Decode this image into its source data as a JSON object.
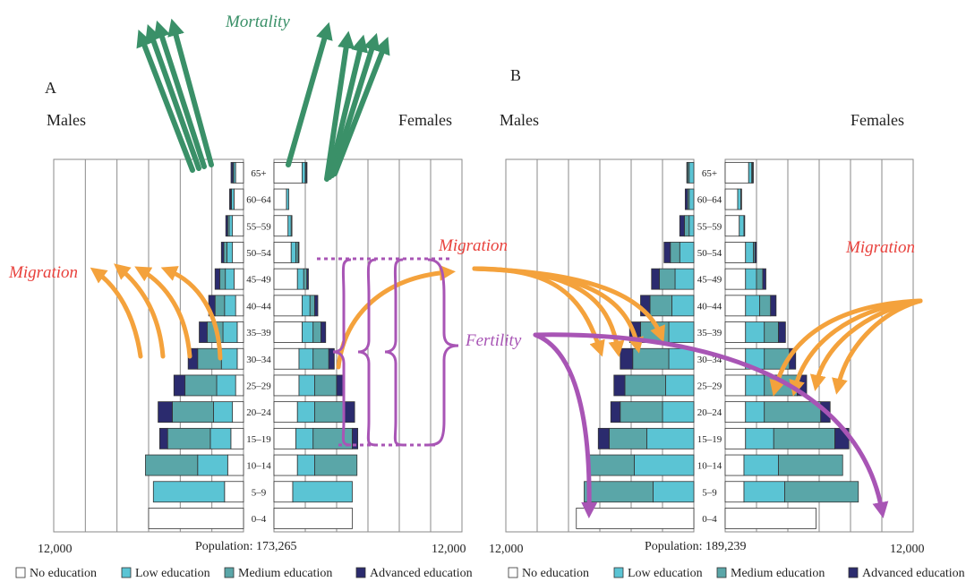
{
  "colors": {
    "no_education": "#ffffff",
    "low_education": "#5bc4d4",
    "medium_education": "#5aa6a8",
    "advanced_education": "#2b2b6e",
    "mortality": "#3a9068",
    "migration_text": "#e8413c",
    "migration_arrow": "#f4a23c",
    "fertility": "#a855b5",
    "grid": "#8a8a8a"
  },
  "legend": [
    {
      "key": "no_education",
      "label": "No education"
    },
    {
      "key": "low_education",
      "label": "Low education"
    },
    {
      "key": "medium_education",
      "label": "Medium education"
    },
    {
      "key": "advanced_education",
      "label": "Advanced education"
    }
  ],
  "age_groups": [
    "65+",
    "60–64",
    "55–59",
    "50–54",
    "45–49",
    "40–44",
    "35–39",
    "30–34",
    "25–29",
    "20–24",
    "15–19",
    "10–14",
    "5–9",
    "0–4"
  ],
  "annotations": {
    "mortality": "Mortality",
    "migration": "Migration",
    "fertility": "Fertility"
  },
  "chart_data": [
    {
      "type": "bar",
      "panel_label": "A",
      "males_label": "Males",
      "females_label": "Females",
      "axis_left": "12,000",
      "axis_right": "12,000",
      "population_text": "Population: 173,265",
      "xlim": [
        0,
        12000
      ],
      "males": [
        {
          "age": "65+",
          "no": 500,
          "low": 120,
          "med": 50,
          "adv": 120
        },
        {
          "age": "60–64",
          "no": 600,
          "low": 160,
          "med": 40,
          "adv": 80
        },
        {
          "age": "55–59",
          "no": 700,
          "low": 200,
          "med": 100,
          "adv": 120
        },
        {
          "age": "50–54",
          "no": 700,
          "low": 350,
          "med": 200,
          "adv": 150
        },
        {
          "age": "45–49",
          "no": 600,
          "low": 550,
          "med": 350,
          "adv": 300
        },
        {
          "age": "40–44",
          "no": 500,
          "low": 700,
          "med": 600,
          "adv": 400
        },
        {
          "age": "35–39",
          "no": 400,
          "low": 900,
          "med": 1000,
          "adv": 500
        },
        {
          "age": "30–34",
          "no": 400,
          "low": 1000,
          "med": 1500,
          "adv": 600
        },
        {
          "age": "25–29",
          "no": 500,
          "low": 1200,
          "med": 2000,
          "adv": 700
        },
        {
          "age": "20–24",
          "no": 700,
          "low": 1200,
          "med": 2600,
          "adv": 900
        },
        {
          "age": "15–19",
          "no": 800,
          "low": 1300,
          "med": 2700,
          "adv": 500
        },
        {
          "age": "10–14",
          "no": 1000,
          "low": 1900,
          "med": 3300,
          "adv": 0
        },
        {
          "age": "5–9",
          "no": 1200,
          "low": 4500,
          "med": 0,
          "adv": 0
        },
        {
          "age": "0–4",
          "no": 6000,
          "low": 0,
          "med": 0,
          "adv": 0
        }
      ],
      "females": [
        {
          "age": "65+",
          "no": 1800,
          "low": 200,
          "med": 50,
          "adv": 60
        },
        {
          "age": "60–64",
          "no": 800,
          "low": 150,
          "med": 0,
          "adv": 0
        },
        {
          "age": "55–59",
          "no": 900,
          "low": 200,
          "med": 50,
          "adv": 0
        },
        {
          "age": "50–54",
          "no": 1100,
          "low": 300,
          "med": 150,
          "adv": 50
        },
        {
          "age": "45–49",
          "no": 1500,
          "low": 400,
          "med": 200,
          "adv": 100
        },
        {
          "age": "40–44",
          "no": 1800,
          "low": 500,
          "med": 300,
          "adv": 200
        },
        {
          "age": "35–39",
          "no": 1800,
          "low": 700,
          "med": 500,
          "adv": 300
        },
        {
          "age": "30–34",
          "no": 1600,
          "low": 900,
          "med": 1000,
          "adv": 350
        },
        {
          "age": "25–29",
          "no": 1600,
          "low": 1000,
          "med": 1400,
          "adv": 450
        },
        {
          "age": "20–24",
          "no": 1500,
          "low": 1100,
          "med": 1900,
          "adv": 650
        },
        {
          "age": "15–19",
          "no": 1400,
          "low": 1100,
          "med": 2500,
          "adv": 350
        },
        {
          "age": "10–14",
          "no": 1500,
          "low": 1100,
          "med": 2700,
          "adv": 0
        },
        {
          "age": "5–9",
          "no": 1200,
          "low": 3800,
          "med": 0,
          "adv": 0
        },
        {
          "age": "0–4",
          "no": 5000,
          "low": 0,
          "med": 0,
          "adv": 0
        }
      ]
    },
    {
      "type": "bar",
      "panel_label": "B",
      "males_label": "Males",
      "females_label": "Females",
      "axis_left": "12,000",
      "axis_right": "12,000",
      "population_text": "Population: 189,239",
      "xlim": [
        0,
        12000
      ],
      "males": [
        {
          "age": "65+",
          "no": 0,
          "low": 300,
          "med": 100,
          "adv": 50
        },
        {
          "age": "60–64",
          "no": 0,
          "low": 300,
          "med": 100,
          "adv": 150
        },
        {
          "age": "55–59",
          "no": 0,
          "low": 300,
          "med": 300,
          "adv": 300
        },
        {
          "age": "50–54",
          "no": 0,
          "low": 900,
          "med": 600,
          "adv": 400
        },
        {
          "age": "45–49",
          "no": 0,
          "low": 1200,
          "med": 1000,
          "adv": 500
        },
        {
          "age": "40–44",
          "no": 0,
          "low": 1400,
          "med": 1400,
          "adv": 600
        },
        {
          "age": "35–39",
          "no": 0,
          "low": 1600,
          "med": 1800,
          "adv": 700
        },
        {
          "age": "30–34",
          "no": 0,
          "low": 1600,
          "med": 2300,
          "adv": 800
        },
        {
          "age": "25–29",
          "no": 0,
          "low": 1800,
          "med": 2600,
          "adv": 700
        },
        {
          "age": "20–24",
          "no": 0,
          "low": 2000,
          "med": 2700,
          "adv": 600
        },
        {
          "age": "15–19",
          "no": 0,
          "low": 3000,
          "med": 2400,
          "adv": 700
        },
        {
          "age": "10–14",
          "no": 0,
          "low": 3800,
          "med": 2900,
          "adv": 0
        },
        {
          "age": "5–9",
          "no": 0,
          "low": 2600,
          "med": 4400,
          "adv": 0
        },
        {
          "age": "0–4",
          "no": 7500,
          "low": 0,
          "med": 0,
          "adv": 0
        }
      ],
      "females": [
        {
          "age": "65+",
          "no": 1500,
          "low": 200,
          "med": 50,
          "adv": 50
        },
        {
          "age": "60–64",
          "no": 800,
          "low": 200,
          "med": 0,
          "adv": 50
        },
        {
          "age": "55–59",
          "no": 900,
          "low": 300,
          "med": 0,
          "adv": 50
        },
        {
          "age": "50–54",
          "no": 1300,
          "low": 500,
          "med": 100,
          "adv": 100
        },
        {
          "age": "45–49",
          "no": 1300,
          "low": 700,
          "med": 400,
          "adv": 200
        },
        {
          "age": "40–44",
          "no": 1300,
          "low": 900,
          "med": 700,
          "adv": 350
        },
        {
          "age": "35–39",
          "no": 1300,
          "low": 1200,
          "med": 900,
          "adv": 450
        },
        {
          "age": "30–34",
          "no": 1300,
          "low": 1200,
          "med": 1600,
          "adv": 400
        },
        {
          "age": "25–29",
          "no": 1300,
          "low": 1200,
          "med": 2100,
          "adv": 600
        },
        {
          "age": "20–24",
          "no": 1300,
          "low": 1200,
          "med": 3600,
          "adv": 600
        },
        {
          "age": "15–19",
          "no": 1300,
          "low": 1800,
          "med": 3900,
          "adv": 900
        },
        {
          "age": "10–14",
          "no": 1200,
          "low": 2200,
          "med": 4100,
          "adv": 0
        },
        {
          "age": "5–9",
          "no": 1200,
          "low": 2600,
          "med": 4700,
          "adv": 0
        },
        {
          "age": "0–4",
          "no": 5800,
          "low": 0,
          "med": 0,
          "adv": 0
        }
      ]
    }
  ]
}
